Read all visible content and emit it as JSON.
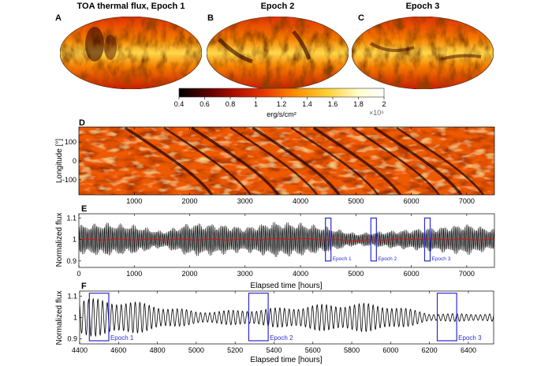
{
  "maps": {
    "titles": [
      "TOA thermal flux,  Epoch 1",
      "Epoch 2",
      "Epoch 3"
    ],
    "letters": [
      "A",
      "B",
      "C"
    ]
  },
  "colorbar": {
    "ticks": [
      "0.4",
      "0.6",
      "0.8",
      "1",
      "1.2",
      "1.4",
      "1.6",
      "1.8",
      "2"
    ],
    "label": "erg/s/cm²",
    "exponent": "×10⁶",
    "range": [
      0.4,
      2
    ],
    "colors": [
      "#000000",
      "#5a0000",
      "#b01000",
      "#e83a00",
      "#ff8a00",
      "#ffcf30",
      "#ffffd0",
      "#ffffff"
    ]
  },
  "panel_D": {
    "letter": "D",
    "ylabel": "Longitude [°]",
    "yticks": [
      "100",
      "0",
      "-100"
    ],
    "xticks": [
      "1000",
      "2000",
      "3000",
      "4000",
      "5000",
      "6000",
      "7000"
    ]
  },
  "panel_E": {
    "letter": "E",
    "ylabel": "Normalized flux",
    "yticks": [
      "1.1",
      "1",
      "0.9"
    ],
    "xticks": [
      "0",
      "1000",
      "2000",
      "3000",
      "4000",
      "5000",
      "6000",
      "7000"
    ],
    "xlabel": "Elapsed time [hours]",
    "epoch_labels": [
      "Epoch 1",
      "Epoch 2",
      "Epoch 3"
    ]
  },
  "panel_F": {
    "letter": "F",
    "ylabel": "Normalized flux",
    "yticks": [
      "1.1",
      "1",
      "0.9"
    ],
    "xticks": [
      "4400",
      "4600",
      "4800",
      "5000",
      "5200",
      "5400",
      "5600",
      "5800",
      "6000",
      "6200",
      "6400"
    ],
    "xlabel": "Elapsed time [hours]",
    "epoch_labels": [
      "Epoch 1",
      "Epoch 2",
      "Epoch 3"
    ]
  },
  "chart_data": [
    {
      "type": "heatmap",
      "panel": "D",
      "x_range": [
        0,
        7500
      ],
      "y_range": [
        -180,
        180
      ],
      "ylabel": "Longitude [°]",
      "colorbar_range": [
        0.4,
        2
      ],
      "colorbar_label": "erg/s/cm²"
    },
    {
      "type": "line",
      "panel": "E",
      "xlabel": "Elapsed time [hours]",
      "ylabel": "Normalized flux",
      "xlim": [
        0,
        7500
      ],
      "ylim": [
        0.87,
        1.12
      ],
      "series": [
        {
          "style": "black",
          "period_hours": 24,
          "envelope_x": [
            0,
            500,
            1000,
            1500,
            2000,
            2500,
            3000,
            3500,
            4000,
            4500,
            5000,
            5500,
            6000,
            6500,
            7000,
            7500
          ],
          "envelope_amplitude": [
            0.07,
            0.08,
            0.07,
            0.04,
            0.08,
            0.075,
            0.06,
            0.085,
            0.08,
            0.06,
            0.03,
            0.04,
            0.05,
            0.06,
            0.075,
            0.05
          ]
        },
        {
          "style": "red",
          "values_x": [
            0,
            1000,
            2000,
            3000,
            4000,
            5000,
            6000,
            7000,
            7500
          ],
          "values_y": [
            1.0,
            1.0,
            1.0,
            1.0,
            1.003,
            0.995,
            1.002,
            1.0,
            1.0
          ]
        }
      ],
      "epoch_windows": [
        [
          4450,
          4550
        ],
        [
          5270,
          5370
        ],
        [
          6240,
          6340
        ]
      ]
    },
    {
      "type": "line",
      "panel": "F",
      "xlabel": "Elapsed time [hours]",
      "ylabel": "Normalized flux",
      "xlim": [
        4400,
        6530
      ],
      "ylim": [
        0.875,
        1.125
      ],
      "series": [
        {
          "style": "black",
          "period_hours": 24,
          "envelope_x": [
            4400,
            4600,
            4800,
            5000,
            5200,
            5400,
            5600,
            5800,
            6000,
            6200,
            6400,
            6530
          ],
          "envelope_amplitude": [
            0.09,
            0.085,
            0.06,
            0.03,
            0.035,
            0.045,
            0.06,
            0.07,
            0.06,
            0.02,
            0.018,
            0.02
          ]
        }
      ],
      "epoch_windows": [
        [
          4450,
          4550
        ],
        [
          5270,
          5370
        ],
        [
          6240,
          6340
        ]
      ]
    }
  ]
}
